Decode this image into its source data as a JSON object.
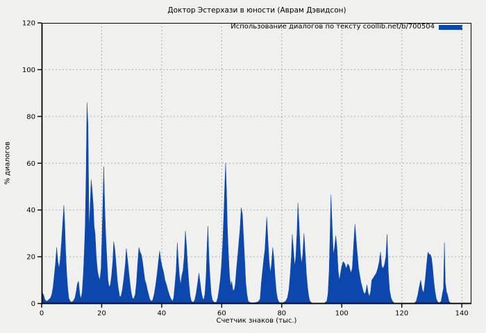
{
  "figure": {
    "background": "#f0f0ee"
  },
  "chart_data": {
    "type": "area",
    "title": "Доктор Эстерхази в юности (Аврам Дэвидсон)",
    "legend": "Использование диалогов по тексту coollib.net/b/700504",
    "legend_position": "top-right",
    "xlabel": "Счетчик знаков (тыс.)",
    "ylabel": "% диалогов",
    "xlim": [
      0,
      143.2
    ],
    "ylim": [
      0,
      120
    ],
    "x_ticks": [
      0,
      20,
      40,
      60,
      80,
      100,
      120,
      140
    ],
    "y_ticks": [
      0,
      20,
      40,
      60,
      80,
      100,
      120
    ],
    "grid": true,
    "series_color": "#0b47ad",
    "grid_color": "#ababab",
    "axis_color": "#000000",
    "points": [
      [
        0,
        3
      ],
      [
        0.3,
        4.5
      ],
      [
        0.7,
        3.5
      ],
      [
        1,
        2
      ],
      [
        1.5,
        1
      ],
      [
        2,
        1.2
      ],
      [
        2.6,
        2
      ],
      [
        3,
        2.5
      ],
      [
        3.4,
        4
      ],
      [
        3.8,
        7
      ],
      [
        4.2,
        12
      ],
      [
        4.6,
        17
      ],
      [
        5,
        24
      ],
      [
        5.4,
        18
      ],
      [
        5.8,
        15
      ],
      [
        6.2,
        19
      ],
      [
        6.6,
        26
      ],
      [
        7,
        34
      ],
      [
        7.4,
        42
      ],
      [
        7.7,
        34
      ],
      [
        8,
        22
      ],
      [
        8.3,
        14
      ],
      [
        8.6,
        8
      ],
      [
        9,
        2.5
      ],
      [
        9.5,
        1
      ],
      [
        10,
        0.6
      ],
      [
        10.6,
        1.2
      ],
      [
        11.1,
        2.5
      ],
      [
        11.5,
        5
      ],
      [
        11.9,
        8.5
      ],
      [
        12.3,
        9.5
      ],
      [
        12.7,
        4
      ],
      [
        13.1,
        2
      ],
      [
        13.5,
        5
      ],
      [
        13.9,
        13
      ],
      [
        14.2,
        22
      ],
      [
        14.5,
        33
      ],
      [
        14.8,
        54
      ],
      [
        15.1,
        86
      ],
      [
        15.45,
        76
      ],
      [
        15.8,
        31
      ],
      [
        16.1,
        40
      ],
      [
        16.5,
        53
      ],
      [
        16.8,
        49
      ],
      [
        17.2,
        42
      ],
      [
        17.5,
        33
      ],
      [
        17.8,
        30
      ],
      [
        18.2,
        20
      ],
      [
        18.6,
        14
      ],
      [
        19,
        11.5
      ],
      [
        19.4,
        10
      ],
      [
        19.8,
        15
      ],
      [
        20.1,
        28
      ],
      [
        20.4,
        43
      ],
      [
        20.7,
        58.5
      ],
      [
        21,
        42
      ],
      [
        21.3,
        31
      ],
      [
        21.7,
        20
      ],
      [
        22.1,
        10
      ],
      [
        22.5,
        7
      ],
      [
        22.9,
        8
      ],
      [
        23.3,
        12
      ],
      [
        23.7,
        18
      ],
      [
        24,
        26.5
      ],
      [
        24.4,
        23
      ],
      [
        24.8,
        17
      ],
      [
        25.2,
        10
      ],
      [
        25.6,
        6
      ],
      [
        26,
        3
      ],
      [
        26.4,
        3
      ],
      [
        26.9,
        6
      ],
      [
        27.4,
        11
      ],
      [
        27.9,
        17
      ],
      [
        28.2,
        23.5
      ],
      [
        28.6,
        19
      ],
      [
        29,
        14
      ],
      [
        29.4,
        9
      ],
      [
        29.8,
        5
      ],
      [
        30.2,
        2.5
      ],
      [
        30.7,
        2
      ],
      [
        31.2,
        4
      ],
      [
        31.6,
        9
      ],
      [
        32,
        17
      ],
      [
        32.4,
        24
      ],
      [
        32.8,
        22
      ],
      [
        33.2,
        21
      ],
      [
        33.6,
        18
      ],
      [
        34,
        14
      ],
      [
        34.4,
        10
      ],
      [
        34.8,
        8.5
      ],
      [
        35.2,
        6
      ],
      [
        35.6,
        4
      ],
      [
        36,
        2
      ],
      [
        36.5,
        1
      ],
      [
        37,
        1.5
      ],
      [
        37.5,
        4
      ],
      [
        38,
        8
      ],
      [
        38.5,
        13
      ],
      [
        39,
        19
      ],
      [
        39.3,
        22.5
      ],
      [
        39.7,
        18.5
      ],
      [
        40.1,
        16
      ],
      [
        40.6,
        13.5
      ],
      [
        41.1,
        10
      ],
      [
        41.6,
        8
      ],
      [
        42.1,
        5.5
      ],
      [
        42.6,
        3.5
      ],
      [
        43.1,
        2
      ],
      [
        43.6,
        1
      ],
      [
        44,
        2.5
      ],
      [
        44.4,
        8
      ],
      [
        44.8,
        14
      ],
      [
        45.2,
        26
      ],
      [
        45.5,
        19
      ],
      [
        45.9,
        12
      ],
      [
        46.3,
        8
      ],
      [
        46.7,
        12
      ],
      [
        47.1,
        14
      ],
      [
        47.5,
        20
      ],
      [
        47.9,
        31
      ],
      [
        48.3,
        24
      ],
      [
        48.7,
        15
      ],
      [
        49.1,
        8
      ],
      [
        49.5,
        3
      ],
      [
        49.9,
        1
      ],
      [
        50.5,
        0.5
      ],
      [
        51,
        1.5
      ],
      [
        51.5,
        4.5
      ],
      [
        52,
        9
      ],
      [
        52.4,
        13
      ],
      [
        52.8,
        9
      ],
      [
        53.2,
        5
      ],
      [
        53.6,
        2.5
      ],
      [
        54,
        1.5
      ],
      [
        54.4,
        4
      ],
      [
        54.8,
        12
      ],
      [
        55.1,
        24
      ],
      [
        55.4,
        33
      ],
      [
        55.7,
        21
      ],
      [
        56.1,
        11
      ],
      [
        56.5,
        4
      ],
      [
        56.9,
        1.5
      ],
      [
        57.5,
        0.5
      ],
      [
        58.2,
        0.5
      ],
      [
        58.7,
        2.5
      ],
      [
        59.1,
        6
      ],
      [
        59.5,
        10
      ],
      [
        59.9,
        16
      ],
      [
        60.3,
        25
      ],
      [
        60.7,
        38
      ],
      [
        61,
        50
      ],
      [
        61.3,
        60
      ],
      [
        61.6,
        48
      ],
      [
        61.9,
        32
      ],
      [
        62.2,
        22
      ],
      [
        62.6,
        12
      ],
      [
        63,
        7.5
      ],
      [
        63.3,
        9.5
      ],
      [
        63.7,
        6
      ],
      [
        64.1,
        5.5
      ],
      [
        64.5,
        8
      ],
      [
        64.9,
        14.5
      ],
      [
        65.3,
        20
      ],
      [
        65.7,
        26
      ],
      [
        66.1,
        32
      ],
      [
        66.5,
        41
      ],
      [
        66.9,
        38
      ],
      [
        67.2,
        30
      ],
      [
        67.6,
        20
      ],
      [
        68,
        9
      ],
      [
        68.4,
        4
      ],
      [
        68.8,
        1
      ],
      [
        69.5,
        0.4
      ],
      [
        70.5,
        0.3
      ],
      [
        71.5,
        0.5
      ],
      [
        72.2,
        0.8
      ],
      [
        72.8,
        2
      ],
      [
        73.2,
        9
      ],
      [
        73.6,
        14
      ],
      [
        74,
        19
      ],
      [
        74.4,
        23
      ],
      [
        74.7,
        30
      ],
      [
        75,
        37
      ],
      [
        75.4,
        27
      ],
      [
        75.8,
        18
      ],
      [
        76.2,
        13
      ],
      [
        76.6,
        17
      ],
      [
        77,
        24
      ],
      [
        77.4,
        19
      ],
      [
        77.8,
        11
      ],
      [
        78.2,
        5
      ],
      [
        78.6,
        2
      ],
      [
        79.1,
        0.6
      ],
      [
        79.8,
        0.3
      ],
      [
        80.6,
        0.5
      ],
      [
        81.3,
        1
      ],
      [
        81.9,
        2.5
      ],
      [
        82.4,
        6
      ],
      [
        82.8,
        12
      ],
      [
        83.2,
        20
      ],
      [
        83.5,
        29.5
      ],
      [
        83.9,
        23
      ],
      [
        84.3,
        16
      ],
      [
        84.7,
        20
      ],
      [
        85.1,
        31
      ],
      [
        85.4,
        43
      ],
      [
        85.8,
        33
      ],
      [
        86.2,
        22
      ],
      [
        86.6,
        17
      ],
      [
        87,
        21
      ],
      [
        87.4,
        30
      ],
      [
        87.8,
        22
      ],
      [
        88.2,
        13
      ],
      [
        88.6,
        7
      ],
      [
        89,
        3
      ],
      [
        89.4,
        1
      ],
      [
        90,
        0.3
      ],
      [
        91.5,
        0
      ],
      [
        93,
        0
      ],
      [
        94.3,
        0.3
      ],
      [
        95,
        1
      ],
      [
        95.4,
        4
      ],
      [
        95.8,
        14
      ],
      [
        96.1,
        30
      ],
      [
        96.4,
        46.5
      ],
      [
        96.8,
        33
      ],
      [
        97.2,
        21
      ],
      [
        97.6,
        24
      ],
      [
        98,
        29
      ],
      [
        98.4,
        24
      ],
      [
        98.8,
        14
      ],
      [
        99.2,
        10
      ],
      [
        99.6,
        13
      ],
      [
        100,
        16
      ],
      [
        100.5,
        18
      ],
      [
        101,
        17
      ],
      [
        101.5,
        15
      ],
      [
        102,
        17
      ],
      [
        102.5,
        16
      ],
      [
        103,
        13
      ],
      [
        103.5,
        15
      ],
      [
        104,
        26
      ],
      [
        104.4,
        34
      ],
      [
        104.8,
        27
      ],
      [
        105.2,
        21
      ],
      [
        105.6,
        15
      ],
      [
        106,
        12
      ],
      [
        106.4,
        9
      ],
      [
        106.8,
        7
      ],
      [
        107.2,
        5
      ],
      [
        107.6,
        4
      ],
      [
        108,
        5
      ],
      [
        108.4,
        8
      ],
      [
        108.8,
        4.5
      ],
      [
        109.2,
        3
      ],
      [
        109.6,
        5
      ],
      [
        110,
        10
      ],
      [
        110.5,
        11
      ],
      [
        111,
        12
      ],
      [
        111.5,
        13
      ],
      [
        112,
        15
      ],
      [
        112.5,
        18
      ],
      [
        112.9,
        22
      ],
      [
        113.3,
        16
      ],
      [
        113.8,
        15
      ],
      [
        114.3,
        17
      ],
      [
        114.7,
        20
      ],
      [
        115.1,
        29.5
      ],
      [
        115.5,
        14
      ],
      [
        115.9,
        6
      ],
      [
        116.4,
        2.5
      ],
      [
        116.9,
        1
      ],
      [
        117.6,
        0
      ],
      [
        119,
        0
      ],
      [
        121,
        0
      ],
      [
        123,
        0
      ],
      [
        124.2,
        0.2
      ],
      [
        124.8,
        1
      ],
      [
        125.3,
        3.5
      ],
      [
        125.8,
        7
      ],
      [
        126.3,
        10
      ],
      [
        126.8,
        6
      ],
      [
        127.3,
        4.5
      ],
      [
        127.8,
        10
      ],
      [
        128.3,
        17
      ],
      [
        128.7,
        22
      ],
      [
        129.1,
        21
      ],
      [
        129.5,
        21
      ],
      [
        129.9,
        19.5
      ],
      [
        130.3,
        15
      ],
      [
        130.7,
        9
      ],
      [
        131.1,
        5
      ],
      [
        131.5,
        2
      ],
      [
        132,
        0.6
      ],
      [
        132.6,
        0.4
      ],
      [
        133.1,
        1
      ],
      [
        133.5,
        4
      ],
      [
        133.9,
        6.5
      ],
      [
        134.2,
        26
      ],
      [
        134.5,
        9
      ],
      [
        134.9,
        5
      ],
      [
        135.3,
        3.5
      ],
      [
        135.7,
        1
      ],
      [
        136.2,
        0.3
      ],
      [
        137,
        0
      ],
      [
        138.5,
        0
      ],
      [
        140,
        0
      ],
      [
        141.5,
        0
      ],
      [
        143,
        0
      ]
    ]
  }
}
